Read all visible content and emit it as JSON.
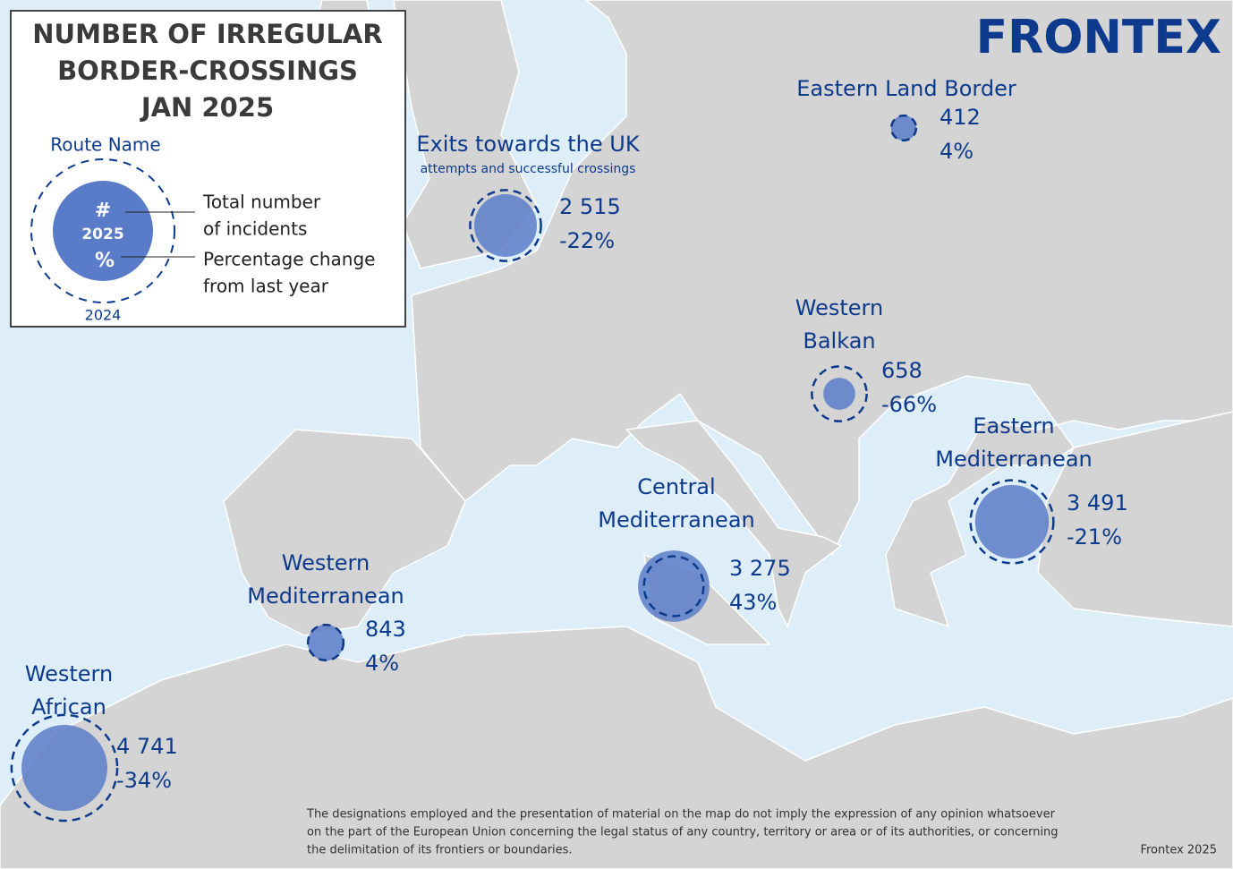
{
  "legend": {
    "title_lines": [
      "NUMBER OF IRREGULAR",
      "BORDER-CROSSINGS",
      "JAN 2025"
    ],
    "route_name": "Route Name",
    "count_symbol": "#",
    "current_year": "2025",
    "change_symbol": "%",
    "previous_year": "2024",
    "count_text_lines": [
      "Total number",
      "of incidents"
    ],
    "change_text_lines": [
      "Percentage change",
      "from last year"
    ]
  },
  "logo": "FRONTEX",
  "routes": [
    {
      "name_lines": [
        "Exits towards the UK"
      ],
      "note": "attempts and successful crossings",
      "count": {
        "value": 2515,
        "label": "2 515"
      },
      "change": {
        "value": -22,
        "label": "-22%"
      }
    },
    {
      "name_lines": [
        "Eastern Land Border"
      ],
      "count": 412,
      "change": {
        "value": 4,
        "label": "4%"
      }
    },
    {
      "name_lines": [
        "Western",
        "Balkan"
      ],
      "count": 658,
      "change": {
        "value": -66,
        "label": "-66%"
      }
    },
    {
      "name_lines": [
        "Eastern",
        "Mediterranean"
      ],
      "count": {
        "value": 3491,
        "label": "3 491"
      },
      "change": {
        "value": -21,
        "label": "-21%"
      }
    },
    {
      "name_lines": [
        "Central",
        "Mediterranean"
      ],
      "count": {
        "value": 3275,
        "label": "3 275"
      },
      "change": {
        "value": 43,
        "label": "43%"
      }
    },
    {
      "name_lines": [
        "Western",
        "Mediterranean"
      ],
      "count": 843,
      "change": {
        "value": 4,
        "label": "4%"
      }
    },
    {
      "name_lines": [
        "Western",
        "African"
      ],
      "count": {
        "value": 4741,
        "label": "4 741"
      },
      "change": {
        "value": -34,
        "label": "-34%"
      }
    }
  ],
  "disclaimer_lines": [
    "The designations employed and the presentation of material on the map do not imply the expression of any opinion whatsoever",
    "on the part of the European Union concerning the legal status of any country, territory or area or of its authorities, or concerning",
    "the delimitation of its frontiers or boundaries."
  ],
  "credit": "Frontex 2025"
}
